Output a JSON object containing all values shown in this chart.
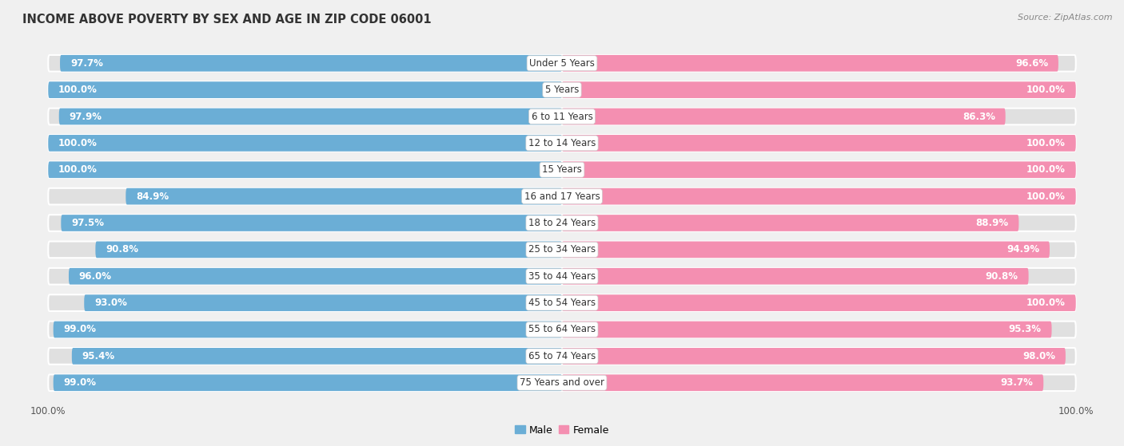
{
  "title": "INCOME ABOVE POVERTY BY SEX AND AGE IN ZIP CODE 06001",
  "source": "Source: ZipAtlas.com",
  "categories": [
    "Under 5 Years",
    "5 Years",
    "6 to 11 Years",
    "12 to 14 Years",
    "15 Years",
    "16 and 17 Years",
    "18 to 24 Years",
    "25 to 34 Years",
    "35 to 44 Years",
    "45 to 54 Years",
    "55 to 64 Years",
    "65 to 74 Years",
    "75 Years and over"
  ],
  "male_values": [
    97.7,
    100.0,
    97.9,
    100.0,
    100.0,
    84.9,
    97.5,
    90.8,
    96.0,
    93.0,
    99.0,
    95.4,
    99.0
  ],
  "female_values": [
    96.6,
    100.0,
    86.3,
    100.0,
    100.0,
    100.0,
    88.9,
    94.9,
    90.8,
    100.0,
    95.3,
    98.0,
    93.7
  ],
  "male_color": "#6BAED6",
  "female_color": "#F48FB1",
  "male_label": "Male",
  "female_label": "Female",
  "background_color": "#f0f0f0",
  "track_color": "#e0e0e0",
  "value_fontsize": 8.5,
  "title_fontsize": 10.5,
  "category_fontsize": 8.5,
  "source_fontsize": 8.0
}
